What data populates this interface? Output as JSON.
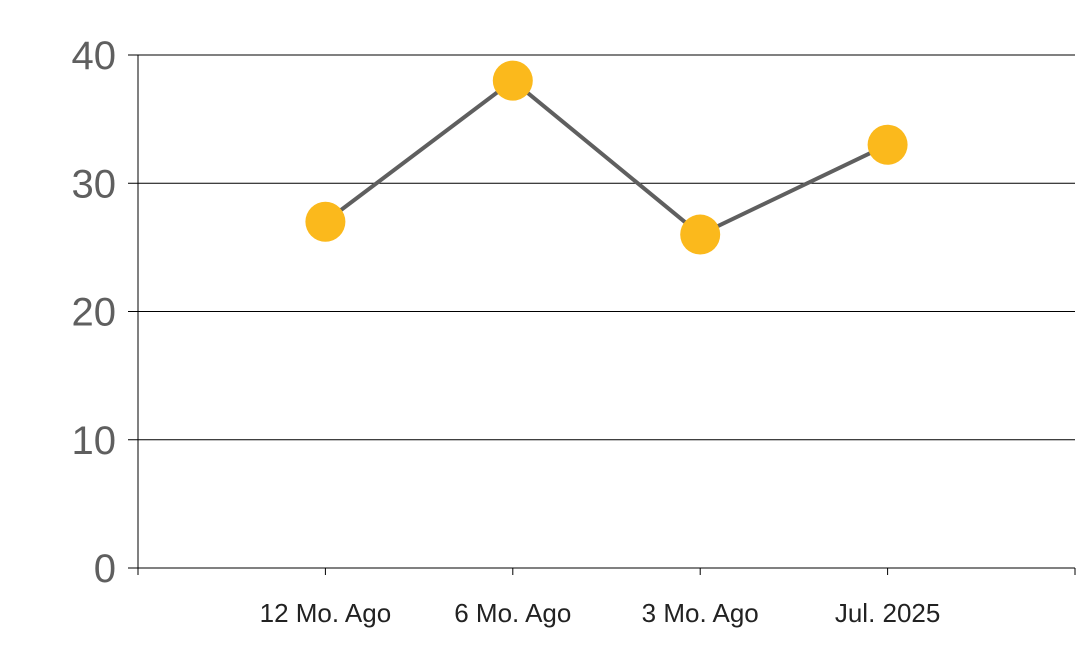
{
  "chart_data": {
    "type": "line",
    "categories": [
      "12 Mo. Ago",
      "6 Mo. Ago",
      "3 Mo. Ago",
      "Jul. 2025"
    ],
    "series": [
      {
        "values": [
          27,
          38,
          26,
          33
        ]
      }
    ],
    "yticks": [
      "0",
      "10",
      "20",
      "30",
      "40"
    ],
    "ylim": [
      0,
      40
    ],
    "grid": true,
    "legend": "none",
    "colors": {
      "line": "#5f5f5f",
      "marker": "#fbb91c",
      "grid": "#000000",
      "tick_text": "#5f5f5f",
      "category_text": "#222222"
    }
  }
}
